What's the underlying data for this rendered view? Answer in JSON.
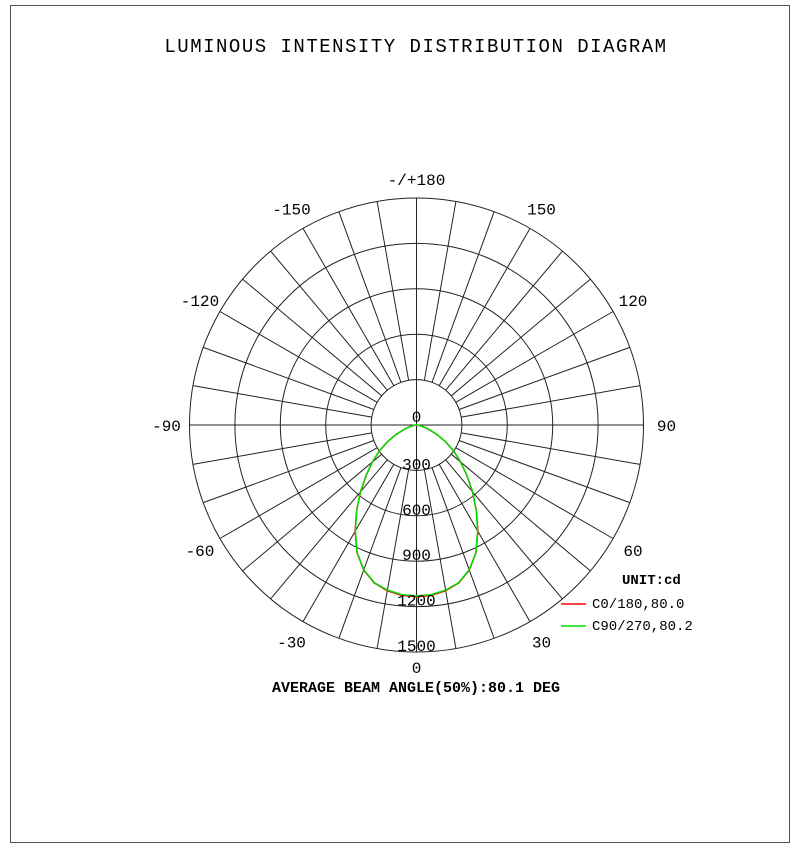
{
  "chart_data": {
    "type": "polar",
    "title": "LUMINOUS INTENSITY DISTRIBUTION DIAGRAM",
    "unit_label": "UNIT:cd",
    "radial_ticks": [
      "0",
      "300",
      "600",
      "900",
      "1200",
      "1500"
    ],
    "radial_values": [
      0,
      300,
      600,
      900,
      1200,
      1500
    ],
    "rlim": [
      0,
      1500
    ],
    "angle_ticks": [
      {
        "angle": 180,
        "label": "-/+180"
      },
      {
        "angle": 150,
        "label": "150"
      },
      {
        "angle": -150,
        "label": "-150"
      },
      {
        "angle": 120,
        "label": "120"
      },
      {
        "angle": -120,
        "label": "-120"
      },
      {
        "angle": 90,
        "label": "90"
      },
      {
        "angle": -90,
        "label": "-90"
      },
      {
        "angle": 60,
        "label": "60"
      },
      {
        "angle": -60,
        "label": "-60"
      },
      {
        "angle": 30,
        "label": "30"
      },
      {
        "angle": -30,
        "label": "-30"
      },
      {
        "angle": 0,
        "label": "0"
      }
    ],
    "grid": true,
    "legend_position": "bottom-right",
    "series": [
      {
        "name": "C0/180,80.0",
        "color": "#ff0000",
        "angles": [
          0,
          5,
          10,
          15,
          20,
          25,
          30,
          35,
          40,
          45,
          50,
          55,
          60,
          65,
          70,
          75,
          80,
          85,
          90
        ],
        "values": [
          1135,
          1130,
          1112,
          1080,
          1020,
          930,
          812,
          690,
          575,
          470,
          380,
          300,
          220,
          150,
          90,
          50,
          20,
          5,
          0
        ]
      },
      {
        "name": "C90/270,80.2",
        "color": "#00dd00",
        "angles": [
          0,
          5,
          10,
          15,
          20,
          25,
          30,
          35,
          40,
          45,
          50,
          55,
          60,
          65,
          70,
          75,
          80,
          85,
          90
        ],
        "values": [
          1130,
          1125,
          1108,
          1078,
          1018,
          928,
          808,
          688,
          578,
          472,
          382,
          302,
          222,
          150,
          90,
          50,
          20,
          5,
          0
        ]
      }
    ],
    "footer": "AVERAGE BEAM ANGLE(50%):80.1 DEG"
  }
}
